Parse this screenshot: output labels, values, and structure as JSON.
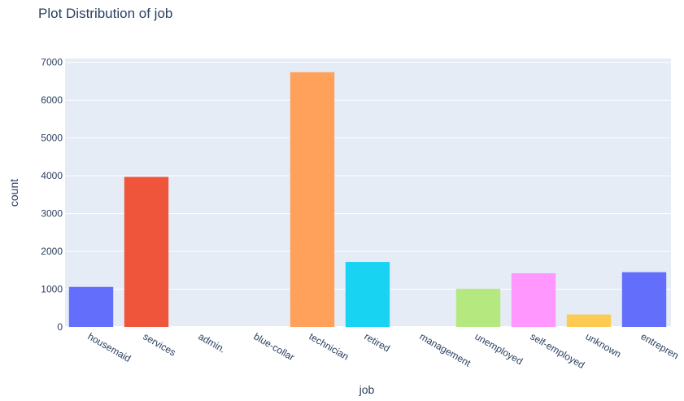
{
  "chart_data": {
    "type": "bar",
    "title": "Plot Distribution of job",
    "xlabel": "job",
    "ylabel": "count",
    "categories": [
      "housemaid",
      "services",
      "admin.",
      "blue-collar",
      "technician",
      "retired",
      "management",
      "unemployed",
      "self-employed",
      "unknown",
      "entrepren"
    ],
    "values": [
      1060,
      3970,
      0,
      0,
      6740,
      1720,
      0,
      1010,
      1420,
      330,
      1450
    ],
    "colors": [
      "#636efa",
      "#ef553b",
      "#00cc96",
      "#ab63fa",
      "#ffa15a",
      "#19d3f3",
      "#ff6692",
      "#b6e880",
      "#ff97ff",
      "#fecb52",
      "#636efa"
    ],
    "ylim": [
      0,
      7100
    ],
    "yticks": [
      0,
      1000,
      2000,
      3000,
      4000,
      5000,
      6000,
      7000
    ],
    "ytick_labels": [
      "0",
      "1000",
      "2000",
      "3000",
      "4000",
      "5000",
      "6000",
      "7000"
    ],
    "grid": true,
    "legend": false,
    "plot_bg": "#e5ecf6"
  }
}
